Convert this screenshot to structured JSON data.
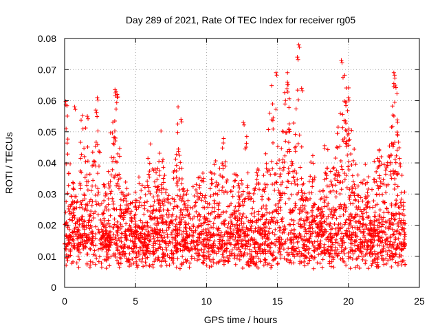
{
  "chart_data": {
    "type": "scatter",
    "title": "Day 289 of 2021, Rate Of TEC Index for receiver rg05",
    "xlabel": "GPS time / hours",
    "ylabel": "ROTI / TECUs",
    "xlim": [
      0,
      25
    ],
    "ylim": [
      0,
      0.08
    ],
    "x_ticks": [
      "0",
      "5",
      "10",
      "15",
      "20",
      "25"
    ],
    "y_ticks": [
      "0",
      "0.01",
      "0.02",
      "0.03",
      "0.04",
      "0.05",
      "0.06",
      "0.07",
      "0.08"
    ],
    "grid": true,
    "marker": "plus",
    "color": "#ff0000",
    "notable_points": [
      {
        "x": 16.5,
        "y": 0.078
      },
      {
        "x": 16.4,
        "y": 0.074
      },
      {
        "x": 19.5,
        "y": 0.073
      },
      {
        "x": 23.2,
        "y": 0.069
      },
      {
        "x": 14.9,
        "y": 0.069
      },
      {
        "x": 15.7,
        "y": 0.066
      },
      {
        "x": 23.3,
        "y": 0.065
      },
      {
        "x": 16.7,
        "y": 0.064
      },
      {
        "x": 2.3,
        "y": 0.061
      },
      {
        "x": 3.7,
        "y": 0.062
      },
      {
        "x": 20.0,
        "y": 0.061
      },
      {
        "x": 0.7,
        "y": 0.058
      },
      {
        "x": 8.2,
        "y": 0.054
      },
      {
        "x": 12.6,
        "y": 0.053
      },
      {
        "x": 1.6,
        "y": 0.055
      },
      {
        "x": 2.2,
        "y": 0.057
      }
    ],
    "series": [
      {
        "x_range": [
          0,
          24
        ],
        "points": [
          [
            0.0,
            0.012
          ],
          [
            0.1,
            0.045
          ],
          [
            0.3,
            0.03
          ],
          [
            0.5,
            0.012
          ],
          [
            0.7,
            0.02
          ],
          [
            1.0,
            0.01
          ],
          [
            1.2,
            0.035
          ],
          [
            1.5,
            0.03
          ],
          [
            1.8,
            0.015
          ],
          [
            2.0,
            0.025
          ],
          [
            2.3,
            0.04
          ],
          [
            2.6,
            0.012
          ],
          [
            3.0,
            0.02
          ],
          [
            3.3,
            0.03
          ],
          [
            3.6,
            0.045
          ],
          [
            4.0,
            0.015
          ],
          [
            4.4,
            0.02
          ],
          [
            4.8,
            0.01
          ],
          [
            5.2,
            0.02
          ],
          [
            5.6,
            0.012
          ],
          [
            6.0,
            0.025
          ],
          [
            6.4,
            0.018
          ],
          [
            6.8,
            0.03
          ],
          [
            7.2,
            0.012
          ],
          [
            7.6,
            0.02
          ],
          [
            8.0,
            0.035
          ],
          [
            8.4,
            0.015
          ],
          [
            8.8,
            0.012
          ],
          [
            9.2,
            0.02
          ],
          [
            9.6,
            0.03
          ],
          [
            10.0,
            0.01
          ],
          [
            10.4,
            0.025
          ],
          [
            10.8,
            0.015
          ],
          [
            11.2,
            0.03
          ],
          [
            11.6,
            0.012
          ],
          [
            12.0,
            0.02
          ],
          [
            12.4,
            0.018
          ],
          [
            12.8,
            0.03
          ],
          [
            13.2,
            0.012
          ],
          [
            13.6,
            0.025
          ],
          [
            14.0,
            0.015
          ],
          [
            14.4,
            0.035
          ],
          [
            14.8,
            0.045
          ],
          [
            15.2,
            0.02
          ],
          [
            15.6,
            0.05
          ],
          [
            16.0,
            0.03
          ],
          [
            16.4,
            0.04
          ],
          [
            16.8,
            0.02
          ],
          [
            17.2,
            0.015
          ],
          [
            17.6,
            0.025
          ],
          [
            18.0,
            0.012
          ],
          [
            18.4,
            0.03
          ],
          [
            18.8,
            0.015
          ],
          [
            19.2,
            0.035
          ],
          [
            19.6,
            0.05
          ],
          [
            20.0,
            0.04
          ],
          [
            20.4,
            0.025
          ],
          [
            20.8,
            0.015
          ],
          [
            21.2,
            0.02
          ],
          [
            21.6,
            0.012
          ],
          [
            22.0,
            0.025
          ],
          [
            22.4,
            0.02
          ],
          [
            22.8,
            0.03
          ],
          [
            23.2,
            0.045
          ],
          [
            23.6,
            0.03
          ],
          [
            24.0,
            0.01
          ]
        ]
      }
    ]
  }
}
